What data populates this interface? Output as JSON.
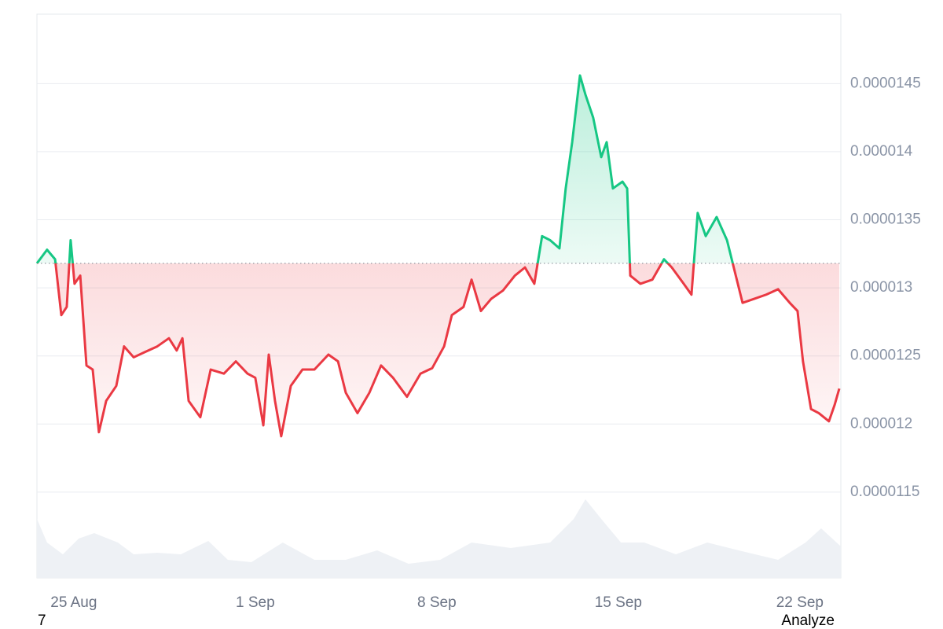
{
  "chart_data": {
    "type": "line",
    "color_up": "#16c784",
    "color_down": "#ea3943",
    "baseline": 1.318e-05,
    "xlim": [
      23.58,
      54.58
    ],
    "xticks": [
      {
        "value": 25,
        "label": "25 Aug"
      },
      {
        "value": 32,
        "label": "1 Sep"
      },
      {
        "value": 39,
        "label": "8 Sep"
      },
      {
        "value": 46,
        "label": "15 Sep"
      },
      {
        "value": 53,
        "label": "22 Sep"
      }
    ],
    "ylim": [
      1.087e-05,
      1.501e-05
    ],
    "yticks": [
      1.15e-05,
      1.2e-05,
      1.25e-05,
      1.3e-05,
      1.35e-05,
      1.4e-05,
      1.45e-05
    ],
    "grid": true,
    "x": [
      23.58,
      23.97,
      24.28,
      24.52,
      24.73,
      24.88,
      25.03,
      25.25,
      25.49,
      25.73,
      25.97,
      26.25,
      26.64,
      26.94,
      27.31,
      27.76,
      28.22,
      28.67,
      28.97,
      29.19,
      29.43,
      29.88,
      30.28,
      30.79,
      31.25,
      31.7,
      32.0,
      32.31,
      32.52,
      32.76,
      33.0,
      33.37,
      33.82,
      34.28,
      34.82,
      35.19,
      35.49,
      35.94,
      36.4,
      36.85,
      37.31,
      37.85,
      38.37,
      38.82,
      39.28,
      39.58,
      40.03,
      40.34,
      40.7,
      41.1,
      41.55,
      42.01,
      42.4,
      42.76,
      43.06,
      43.37,
      43.73,
      43.97,
      44.22,
      44.52,
      44.73,
      45.03,
      45.34,
      45.55,
      45.79,
      46.16,
      46.34,
      46.46,
      46.85,
      47.31,
      47.76,
      48.06,
      48.52,
      48.82,
      49.06,
      49.37,
      49.79,
      50.19,
      50.49,
      50.79,
      51.25,
      51.7,
      52.16,
      52.61,
      52.91,
      53.12,
      53.43,
      53.73,
      54.12,
      54.34,
      54.52
    ],
    "values": [
      1.318e-05,
      1.328e-05,
      1.321e-05,
      1.28e-05,
      1.286e-05,
      1.335e-05,
      1.303e-05,
      1.309e-05,
      1.243e-05,
      1.24e-05,
      1.194e-05,
      1.217e-05,
      1.228e-05,
      1.257e-05,
      1.249e-05,
      1.253e-05,
      1.257e-05,
      1.263e-05,
      1.254e-05,
      1.263e-05,
      1.217e-05,
      1.205e-05,
      1.24e-05,
      1.237e-05,
      1.246e-05,
      1.237e-05,
      1.234e-05,
      1.199e-05,
      1.251e-05,
      1.217e-05,
      1.191e-05,
      1.228e-05,
      1.24e-05,
      1.24e-05,
      1.251e-05,
      1.246e-05,
      1.223e-05,
      1.208e-05,
      1.223e-05,
      1.243e-05,
      1.234e-05,
      1.22e-05,
      1.237e-05,
      1.241e-05,
      1.257e-05,
      1.28e-05,
      1.286e-05,
      1.306e-05,
      1.283e-05,
      1.292e-05,
      1.298e-05,
      1.309e-05,
      1.315e-05,
      1.303e-05,
      1.338e-05,
      1.335e-05,
      1.329e-05,
      1.373e-05,
      1.407e-05,
      1.456e-05,
      1.442e-05,
      1.425e-05,
      1.396e-05,
      1.407e-05,
      1.373e-05,
      1.378e-05,
      1.373e-05,
      1.309e-05,
      1.303e-05,
      1.306e-05,
      1.321e-05,
      1.315e-05,
      1.303e-05,
      1.295e-05,
      1.355e-05,
      1.338e-05,
      1.352e-05,
      1.335e-05,
      1.312e-05,
      1.289e-05,
      1.292e-05,
      1.295e-05,
      1.299e-05,
      1.289e-05,
      1.283e-05,
      1.246e-05,
      1.211e-05,
      1.208e-05,
      1.202e-05,
      1.214e-05,
      1.226e-05
    ],
    "volume": {
      "color": "#eef1f5",
      "x": [
        23.58,
        23.97,
        24.58,
        25.19,
        25.79,
        26.7,
        27.31,
        28.22,
        29.13,
        30.19,
        30.94,
        31.85,
        33.06,
        34.28,
        35.49,
        36.7,
        37.91,
        39.13,
        40.34,
        41.85,
        43.37,
        44.28,
        44.73,
        45.34,
        46.1,
        47.0,
        48.22,
        49.43,
        50.64,
        52.16,
        53.22,
        53.82,
        54.58
      ],
      "values": [
        75,
        45,
        30,
        50,
        57,
        45,
        30,
        32,
        30,
        47,
        23,
        20,
        45,
        23,
        23,
        35,
        18,
        23,
        45,
        38,
        45,
        75,
        100,
        75,
        45,
        45,
        30,
        45,
        35,
        23,
        45,
        63,
        40
      ]
    }
  },
  "footer": {
    "left": "7",
    "right": "Analyze"
  }
}
